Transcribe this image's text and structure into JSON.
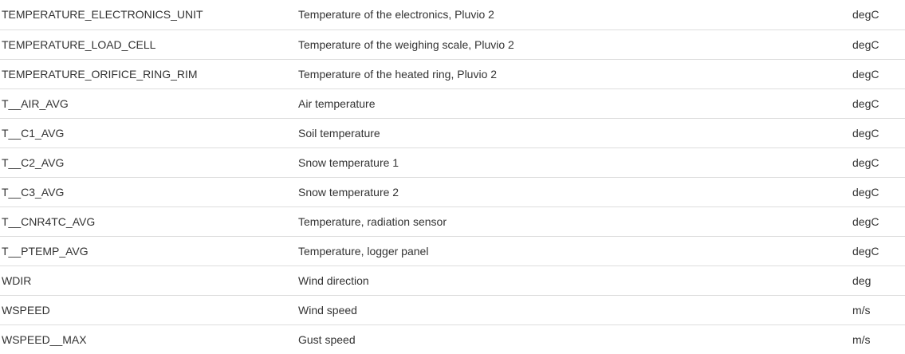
{
  "table": {
    "rows": [
      {
        "name": "TEMPERATURE_ELECTRONICS_UNIT",
        "description": "Temperature of the electronics, Pluvio 2",
        "unit": "degC"
      },
      {
        "name": "TEMPERATURE_LOAD_CELL",
        "description": "Temperature of the weighing scale, Pluvio 2",
        "unit": "degC"
      },
      {
        "name": "TEMPERATURE_ORIFICE_RING_RIM",
        "description": "Temperature of the heated ring, Pluvio 2",
        "unit": "degC"
      },
      {
        "name": "T__AIR_AVG",
        "description": "Air temperature",
        "unit": "degC"
      },
      {
        "name": "T__C1_AVG",
        "description": "Soil temperature",
        "unit": "degC"
      },
      {
        "name": "T__C2_AVG",
        "description": "Snow temperature 1",
        "unit": "degC"
      },
      {
        "name": "T__C3_AVG",
        "description": "Snow temperature 2",
        "unit": "degC"
      },
      {
        "name": "T__CNR4TC_AVG",
        "description": "Temperature, radiation sensor",
        "unit": "degC"
      },
      {
        "name": "T__PTEMP_AVG",
        "description": "Temperature, logger panel",
        "unit": "degC"
      },
      {
        "name": "WDIR",
        "description": "Wind direction",
        "unit": "deg"
      },
      {
        "name": "WSPEED",
        "description": "Wind speed",
        "unit": "m/s"
      },
      {
        "name": "WSPEED__MAX",
        "description": "Gust speed",
        "unit": "m/s"
      }
    ]
  }
}
